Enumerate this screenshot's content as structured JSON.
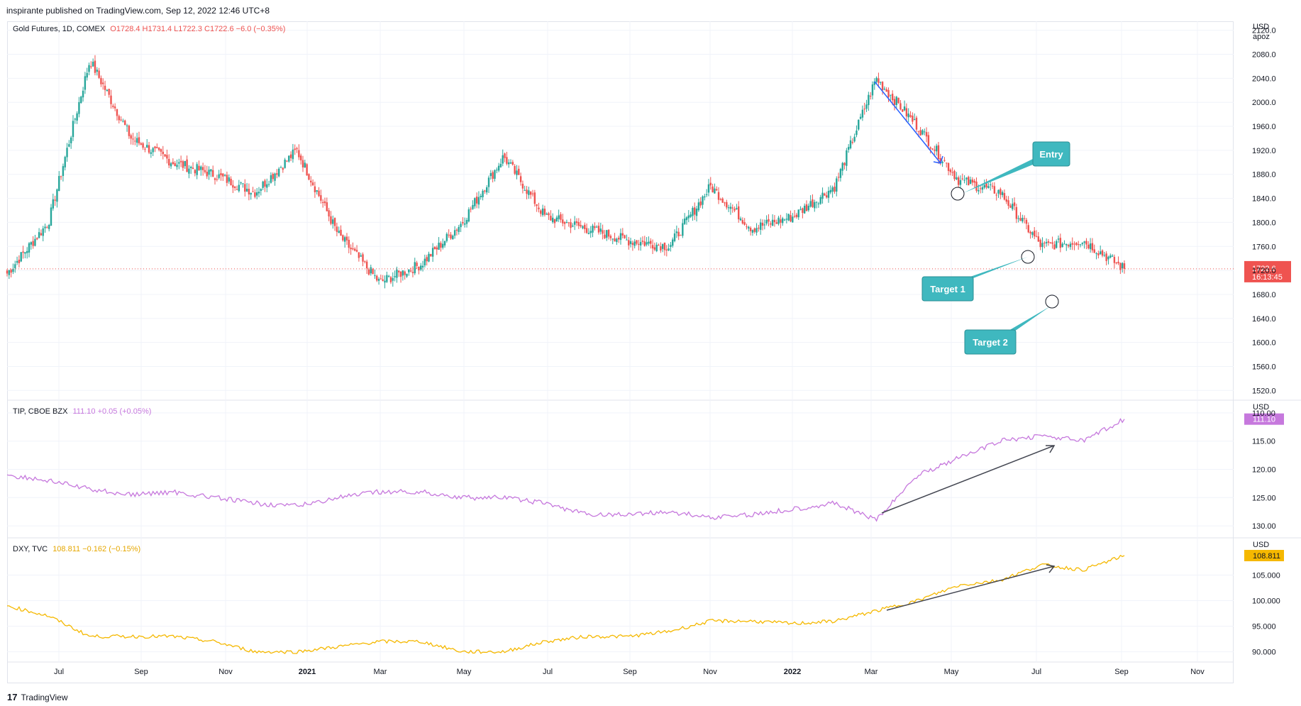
{
  "header": {
    "publisher": "inspirante published on TradingView.com, Sep 12, 2022 12:46 UTC+8"
  },
  "footer": {
    "brand": "TradingView",
    "logo_mark": "17"
  },
  "colors": {
    "up": "#26a69a",
    "down": "#ef5350",
    "tip": "#c678dd",
    "dxy": "#f5b800",
    "annotation": "#3fb8bf",
    "trend": "#2962ff",
    "price_line": "#ef5350"
  },
  "panes": {
    "gold": {
      "legend_symbol": "Gold Futures, 1D, COMEX",
      "legend_values": "O1728.4  H1731.4  L1722.3  C1722.6  −6.0 (−0.35%)",
      "unit": "USD",
      "unit_sub": "apoz",
      "ticks": [
        "2120.0",
        "2080.0",
        "2040.0",
        "2000.0",
        "1960.0",
        "1920.0",
        "1880.0",
        "1840.0",
        "1800.0",
        "1760.0",
        "1720.0",
        "1680.0",
        "1640.0",
        "1600.0",
        "1560.0",
        "1520.0"
      ],
      "last_price": "1722.6",
      "countdown": "16:13:45"
    },
    "tip": {
      "legend_symbol": "TIP, CBOE BZX",
      "legend_values": "111.10  +0.05 (+0.05%)",
      "unit": "USD",
      "ticks": [
        "110.00",
        "115.00",
        "120.00",
        "125.00",
        "130.00"
      ],
      "last_price": "111.10"
    },
    "dxy": {
      "legend_symbol": "DXY, TVC",
      "legend_values": "108.811  −0.162 (−0.15%)",
      "unit": "USD",
      "ticks": [
        "105.000",
        "100.000",
        "95.000",
        "90.000"
      ],
      "last_price": "108.811"
    }
  },
  "x_axis": [
    "Jul",
    "Sep",
    "Nov",
    "2021",
    "Mar",
    "May",
    "Jul",
    "Sep",
    "Nov",
    "2022",
    "Mar",
    "May",
    "Jul",
    "Sep",
    "Nov"
  ],
  "annotations": {
    "entry": "Entry",
    "target1": "Target 1",
    "target2": "Target 2"
  },
  "chart_data": [
    {
      "type": "candlestick",
      "title": "Gold Futures, 1D, COMEX",
      "ylabel": "USD",
      "ylim": [
        1505,
        2135
      ],
      "x": [
        "2020-06",
        "2020-07",
        "2020-08",
        "2020-09",
        "2020-10",
        "2020-11",
        "2020-12",
        "2021-01",
        "2021-02",
        "2021-03",
        "2021-04",
        "2021-05",
        "2021-06",
        "2021-07",
        "2021-08",
        "2021-09",
        "2021-10",
        "2021-11",
        "2021-12",
        "2022-01",
        "2022-02",
        "2022-03",
        "2022-04",
        "2022-05",
        "2022-06",
        "2022-07",
        "2022-08",
        "2022-09"
      ],
      "close": [
        1715,
        1800,
        2070,
        1940,
        1900,
        1880,
        1850,
        1920,
        1780,
        1700,
        1730,
        1800,
        1910,
        1810,
        1790,
        1770,
        1760,
        1860,
        1790,
        1810,
        1860,
        2040,
        1960,
        1870,
        1850,
        1760,
        1770,
        1722.6
      ],
      "last": 1722.6
    },
    {
      "type": "line",
      "title": "TIP, CBOE BZX",
      "ylabel": "USD",
      "ylim": [
        132,
        108
      ],
      "x": [
        "2020-06",
        "2020-07",
        "2020-08",
        "2020-09",
        "2020-10",
        "2020-11",
        "2020-12",
        "2021-01",
        "2021-02",
        "2021-03",
        "2021-04",
        "2021-05",
        "2021-06",
        "2021-07",
        "2021-08",
        "2021-09",
        "2021-10",
        "2021-11",
        "2021-12",
        "2022-01",
        "2022-02",
        "2022-03",
        "2022-04",
        "2022-05",
        "2022-06",
        "2022-07",
        "2022-08",
        "2022-09"
      ],
      "values": [
        121,
        122,
        123.5,
        124.5,
        124,
        125,
        126,
        126.5,
        125,
        124,
        124,
        125,
        125,
        126,
        128,
        128,
        127.5,
        128.5,
        128,
        127,
        126,
        129,
        121,
        118,
        115,
        114,
        115,
        111.1
      ],
      "last": 111.1
    },
    {
      "type": "line",
      "title": "DXY, TVC",
      "ylabel": "USD",
      "ylim": [
        88,
        112
      ],
      "x": [
        "2020-06",
        "2020-07",
        "2020-08",
        "2020-09",
        "2020-10",
        "2020-11",
        "2020-12",
        "2021-01",
        "2021-02",
        "2021-03",
        "2021-04",
        "2021-05",
        "2021-06",
        "2021-07",
        "2021-08",
        "2021-09",
        "2021-10",
        "2021-11",
        "2021-12",
        "2022-01",
        "2022-02",
        "2022-03",
        "2022-04",
        "2022-05",
        "2022-06",
        "2022-07",
        "2022-08",
        "2022-09"
      ],
      "values": [
        99,
        97,
        93,
        93,
        93,
        92,
        90,
        90,
        91,
        92,
        92,
        90,
        90,
        92,
        93,
        93,
        94,
        96,
        96,
        95.5,
        96,
        98,
        100,
        103,
        104,
        107,
        106,
        108.8
      ],
      "last": 108.811
    }
  ]
}
